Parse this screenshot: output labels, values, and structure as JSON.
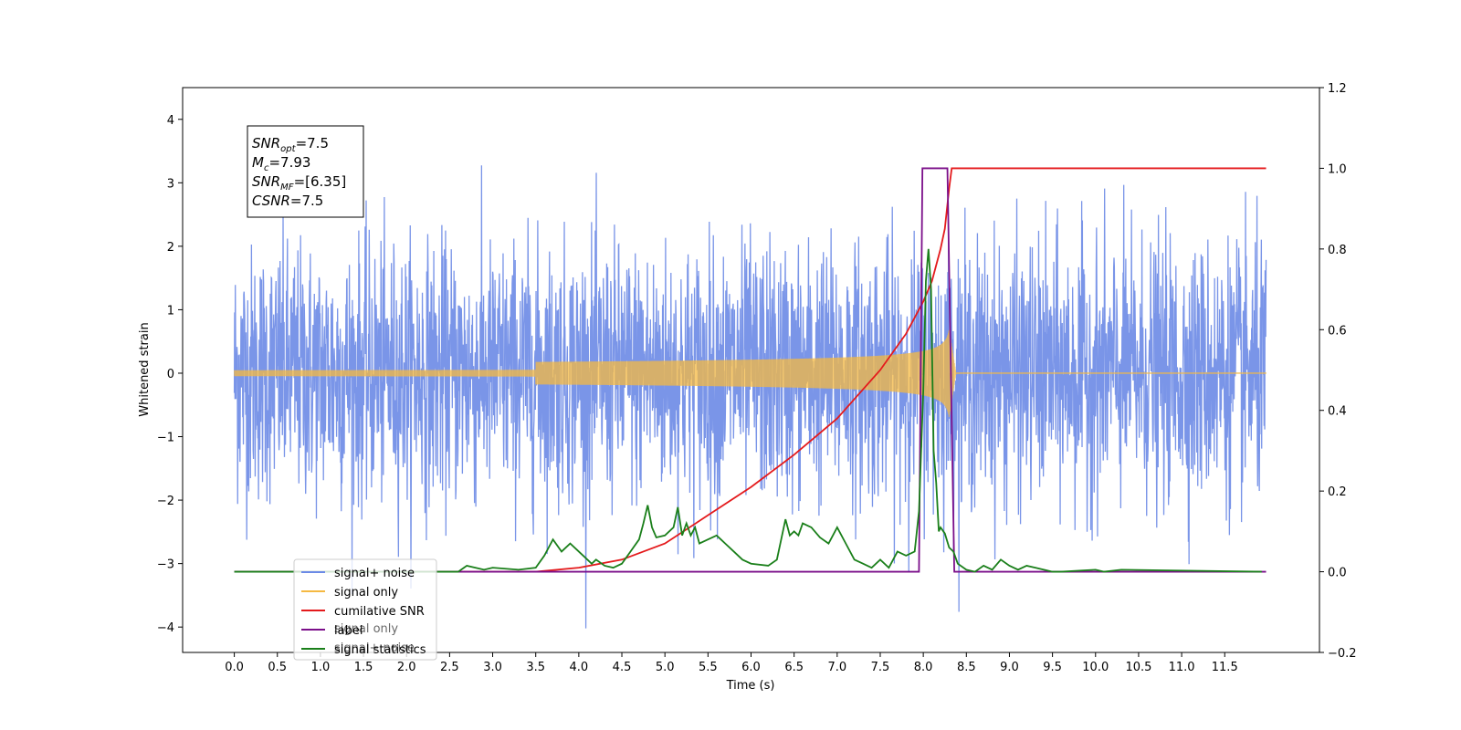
{
  "chart_data": {
    "type": "line",
    "xlabel": "Time (s)",
    "ylabel": "Whitened strain",
    "xlim": [
      -0.6,
      12.6
    ],
    "ylim": [
      -4.4,
      4.5
    ],
    "y2lim": [
      -0.2,
      1.2
    ],
    "x_ticks": [
      "0.0",
      "0.5",
      "1.0",
      "1.5",
      "2.0",
      "2.5",
      "3.0",
      "3.5",
      "4.0",
      "4.5",
      "5.0",
      "5.5",
      "6.0",
      "6.5",
      "7.0",
      "7.5",
      "8.0",
      "8.5",
      "9.0",
      "9.5",
      "10.0",
      "10.5",
      "11.0",
      "11.5"
    ],
    "y_ticks": [
      {
        "v": 4,
        "label": "4"
      },
      {
        "v": 3,
        "label": "3"
      },
      {
        "v": 2,
        "label": "2"
      },
      {
        "v": 1,
        "label": "1"
      },
      {
        "v": 0,
        "label": "0"
      },
      {
        "v": -1,
        "label": "−1"
      },
      {
        "v": -2,
        "label": "−2"
      },
      {
        "v": -3,
        "label": "−3"
      },
      {
        "v": -4,
        "label": "−4"
      }
    ],
    "y2_ticks": [
      {
        "v": 1.2,
        "label": "1.2"
      },
      {
        "v": 1.0,
        "label": "1.0"
      },
      {
        "v": 0.8,
        "label": "0.8"
      },
      {
        "v": 0.6,
        "label": "0.6"
      },
      {
        "v": 0.4,
        "label": "0.4"
      },
      {
        "v": 0.2,
        "label": "0.2"
      },
      {
        "v": 0.0,
        "label": "0.0"
      },
      {
        "v": -0.2,
        "label": "−0.2"
      }
    ],
    "colors": {
      "noise": "#6b8ae6",
      "signal": "#f5b942",
      "csnr": "#e41a1c",
      "label": "#7b0f8a",
      "stats": "#1a7f1a"
    },
    "series": [
      {
        "name": "signal+ noise",
        "axis": "left",
        "kind": "noise",
        "x_range": [
          0.0,
          11.98
        ],
        "sample_rate_hz": 256,
        "amplitude_std": 1.0
      },
      {
        "name": "signal only",
        "axis": "left",
        "kind": "chirp",
        "x_range": [
          0.0,
          11.98
        ],
        "merger_time": 8.3,
        "amplitude_at_merger": 0.7,
        "amplitude_at_4s": 0.04
      },
      {
        "name": "cumilative SNR",
        "axis": "right",
        "x": [
          0.0,
          3.5,
          4.0,
          4.5,
          5.0,
          5.5,
          6.0,
          6.5,
          7.0,
          7.5,
          7.8,
          8.0,
          8.1,
          8.2,
          8.25,
          8.3,
          8.33,
          11.98
        ],
        "y": [
          0.0,
          0.0,
          0.01,
          0.03,
          0.07,
          0.14,
          0.21,
          0.29,
          0.38,
          0.5,
          0.59,
          0.67,
          0.72,
          0.8,
          0.85,
          0.95,
          1.0,
          1.0
        ]
      },
      {
        "name": "label",
        "axis": "right",
        "x": [
          0.0,
          7.95,
          7.99,
          8.28,
          8.36,
          11.98
        ],
        "y": [
          0.0,
          0.0,
          1.0,
          1.0,
          0.0,
          0.0
        ]
      },
      {
        "name": "signal statistics",
        "axis": "right",
        "x": [
          0.0,
          2.4,
          2.6,
          2.7,
          2.9,
          3.0,
          3.3,
          3.5,
          3.6,
          3.7,
          3.8,
          3.9,
          4.0,
          4.1,
          4.15,
          4.2,
          4.3,
          4.4,
          4.5,
          4.6,
          4.7,
          4.75,
          4.8,
          4.85,
          4.9,
          5.0,
          5.1,
          5.15,
          5.2,
          5.25,
          5.3,
          5.35,
          5.4,
          5.5,
          5.6,
          5.65,
          5.7,
          5.8,
          5.9,
          6.0,
          6.2,
          6.3,
          6.4,
          6.45,
          6.5,
          6.55,
          6.6,
          6.7,
          6.8,
          6.9,
          7.0,
          7.1,
          7.2,
          7.3,
          7.4,
          7.5,
          7.6,
          7.7,
          7.8,
          7.9,
          7.95,
          8.0,
          8.03,
          8.06,
          8.09,
          8.12,
          8.15,
          8.18,
          8.2,
          8.25,
          8.3,
          8.35,
          8.4,
          8.5,
          8.6,
          8.7,
          8.8,
          8.9,
          9.0,
          9.1,
          9.2,
          9.3,
          9.5,
          9.6,
          10.0,
          10.1,
          10.3,
          11.93
        ],
        "y": [
          0.0,
          0.0,
          0.0,
          0.015,
          0.005,
          0.01,
          0.005,
          0.01,
          0.04,
          0.08,
          0.05,
          0.07,
          0.05,
          0.03,
          0.02,
          0.03,
          0.015,
          0.01,
          0.02,
          0.05,
          0.08,
          0.12,
          0.165,
          0.11,
          0.085,
          0.09,
          0.11,
          0.16,
          0.09,
          0.12,
          0.09,
          0.11,
          0.07,
          0.08,
          0.09,
          0.08,
          0.07,
          0.05,
          0.03,
          0.02,
          0.015,
          0.03,
          0.13,
          0.09,
          0.1,
          0.09,
          0.12,
          0.11,
          0.085,
          0.07,
          0.11,
          0.07,
          0.03,
          0.02,
          0.01,
          0.03,
          0.01,
          0.05,
          0.04,
          0.05,
          0.15,
          0.45,
          0.72,
          0.8,
          0.7,
          0.3,
          0.22,
          0.1,
          0.11,
          0.095,
          0.06,
          0.05,
          0.02,
          0.005,
          0.0,
          0.015,
          0.005,
          0.03,
          0.015,
          0.005,
          0.015,
          0.01,
          0.0,
          0.0,
          0.005,
          0.0,
          0.005,
          0.0
        ]
      }
    ],
    "legend": {
      "placement": "lower-left",
      "entries": [
        {
          "label": "signal+ noise",
          "color": "#6b8ae6"
        },
        {
          "label": "signal only",
          "color": "#f5b942"
        },
        {
          "label": "cumilative SNR",
          "color": "#e41a1c"
        },
        {
          "label": "label",
          "color": "#7b0f8a"
        },
        {
          "label": "signal statistics",
          "color": "#1a7f1a"
        }
      ],
      "ghost_text": [
        "signal only",
        "signal+ noise"
      ]
    },
    "annotation": {
      "placement": "top-left",
      "lines": [
        {
          "sym": "SNR",
          "sub": "opt",
          "rest": "=7.5"
        },
        {
          "sym": "M",
          "sub": "c",
          "rest": "=7.93"
        },
        {
          "sym": "SNR",
          "sub": "MF",
          "rest": "=[6.35]"
        },
        {
          "sym": "CSNR",
          "sub": "",
          "rest": "=7.5"
        }
      ]
    },
    "grid": false
  }
}
